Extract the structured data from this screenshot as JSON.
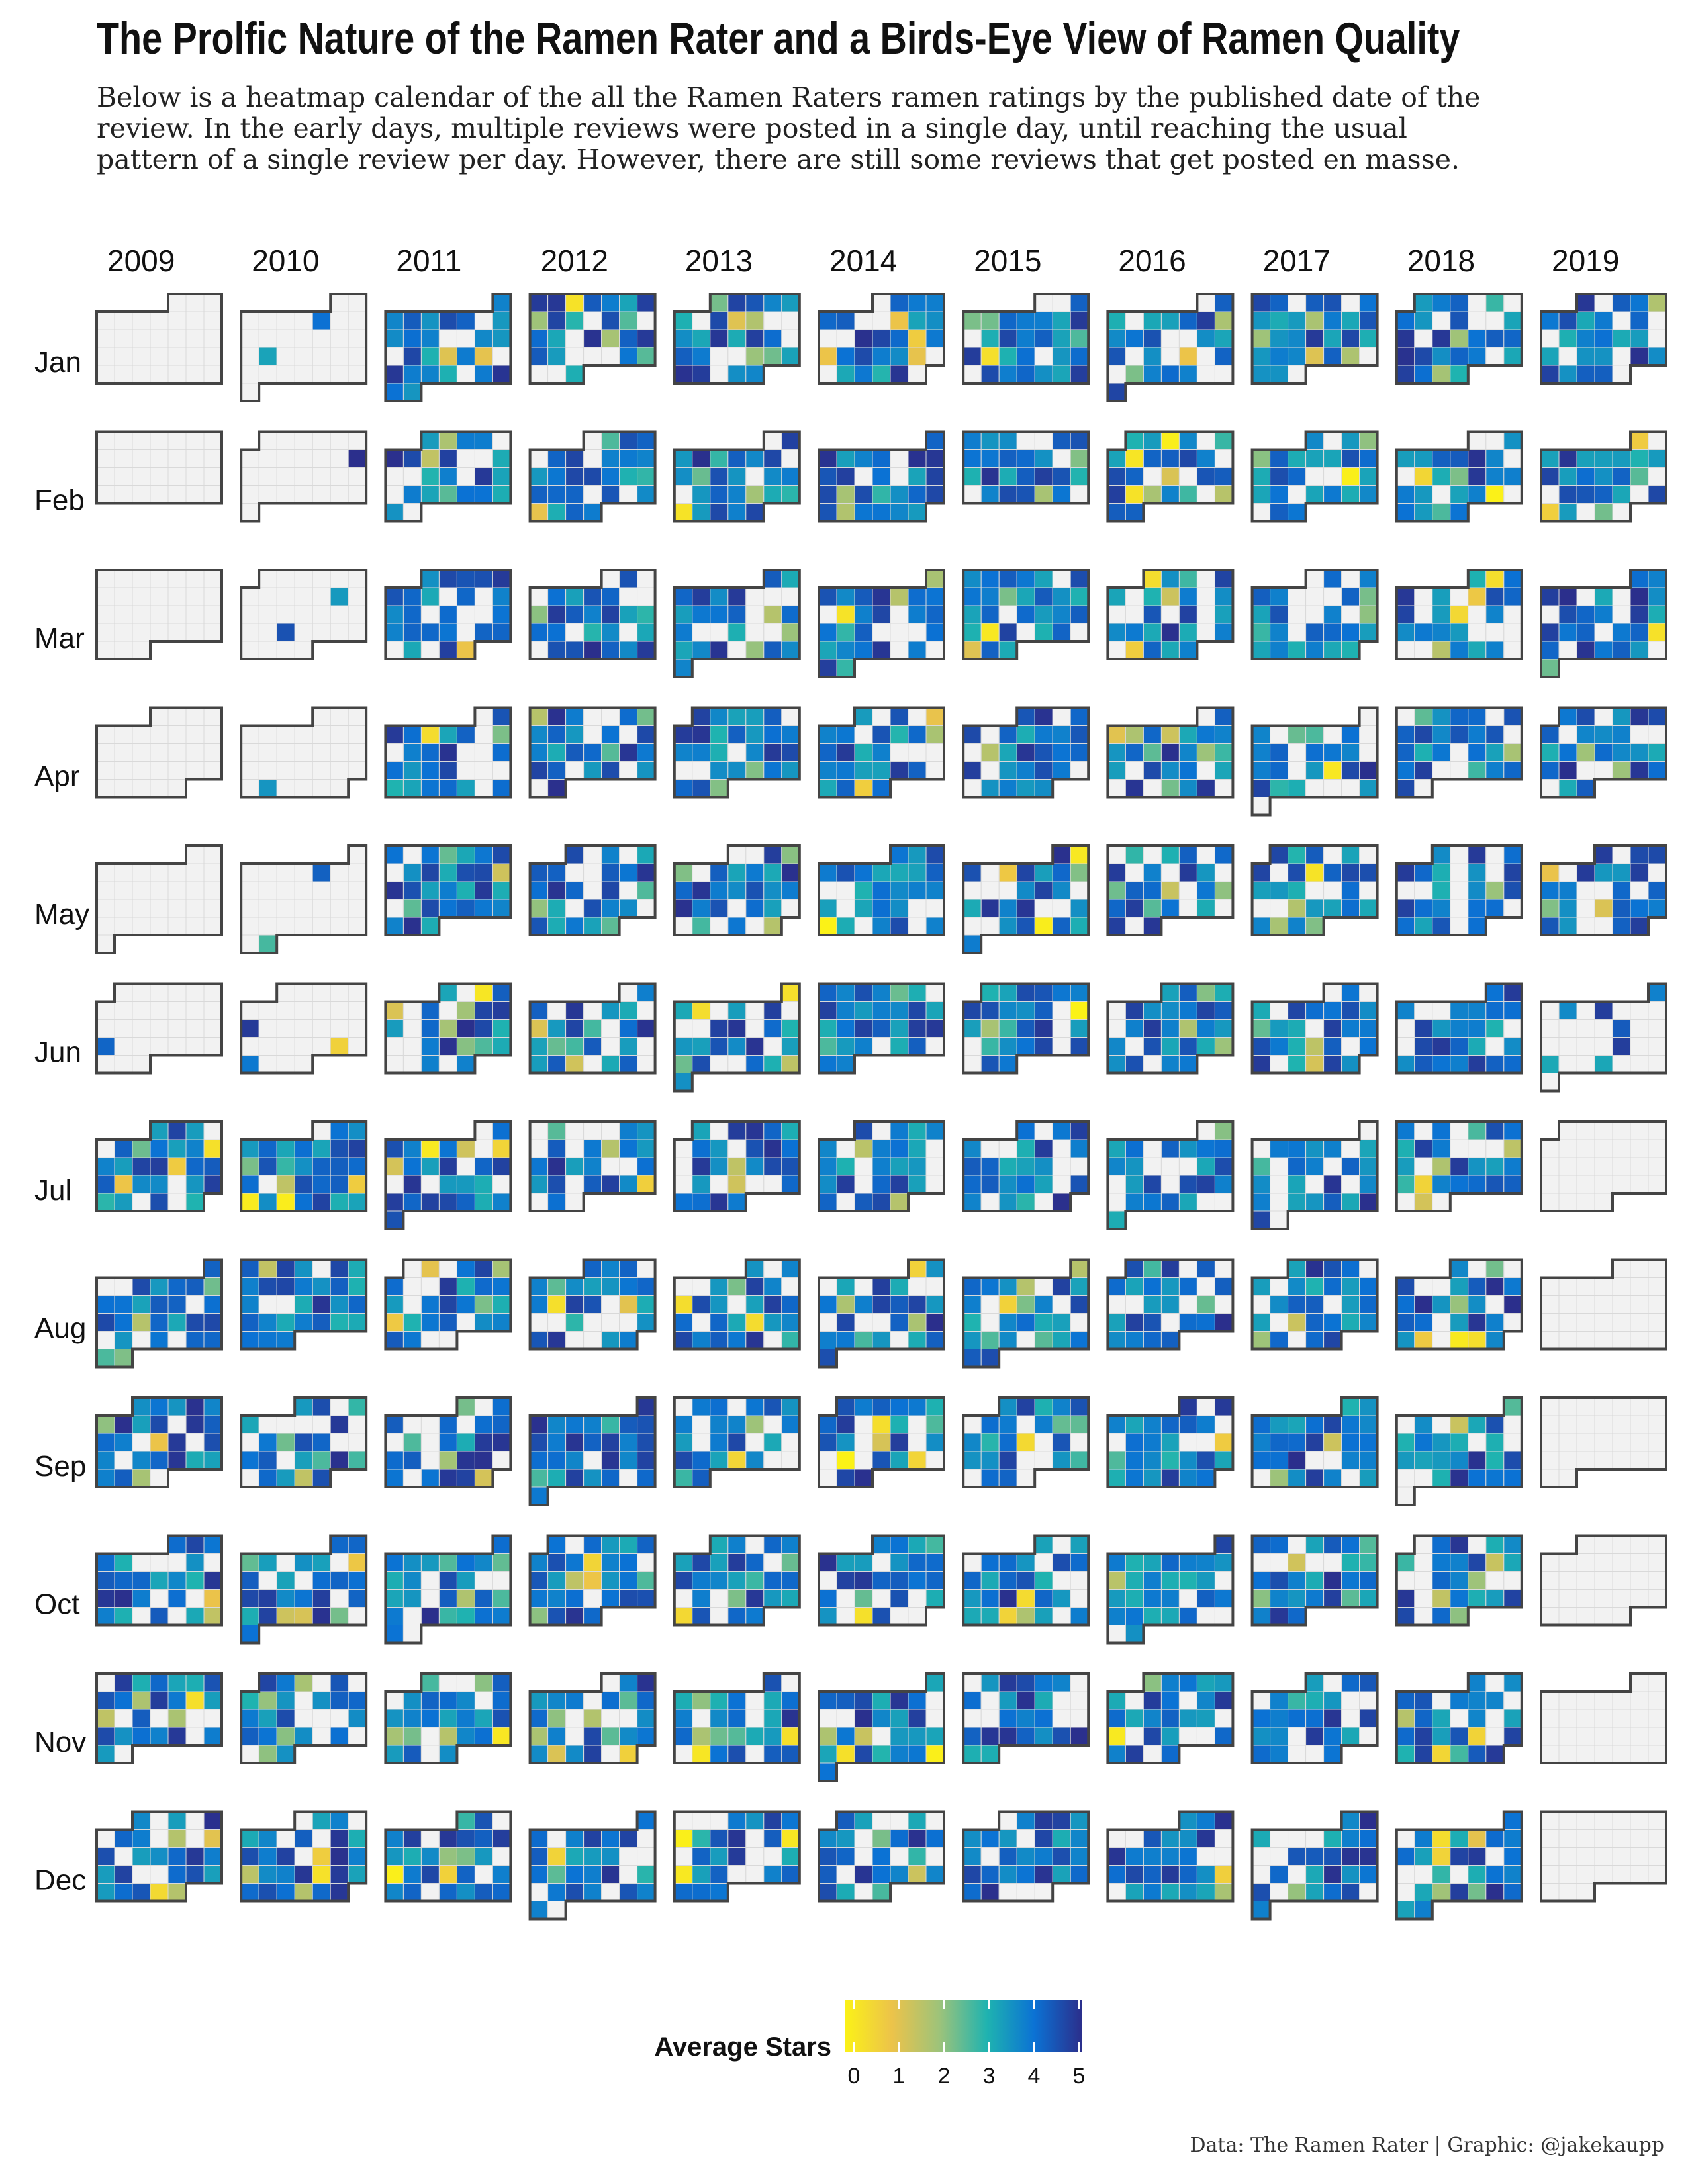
{
  "title": "The Prolfic Nature of the Ramen Rater and a Birds-Eye View of Ramen Quality",
  "subtitle_lines": [
    "Below is a heatmap calendar of the all the Ramen Raters ramen ratings by the published date of the",
    "review. In the early days, multiple reviews were posted in a single day, until reaching the usual",
    "pattern of a single review per day. However, there are still some reviews that get posted en masse."
  ],
  "caption": "Data: The Ramen Rater | Graphic: @jakekaupp",
  "chart_data": {
    "type": "heatmap",
    "description_of_layout": "calendar heatmap: columns are years, rows are months; each cell is one day placed in a weekday x week-of-month grid",
    "years": [
      "2009",
      "2010",
      "2011",
      "2012",
      "2013",
      "2014",
      "2015",
      "2016",
      "2017",
      "2018",
      "2019"
    ],
    "months": [
      "Jan",
      "Feb",
      "Mar",
      "Apr",
      "May",
      "Jun",
      "Jul",
      "Aug",
      "Sep",
      "Oct",
      "Nov",
      "Dec"
    ],
    "value_name": "Average Stars",
    "value_range": [
      0,
      5
    ],
    "no_review_color": "#f2f2f2",
    "grid_line_color": "#d9d9d9",
    "outline_color": "#444444",
    "legend": {
      "title": "Average Stars",
      "ticks": [
        "0",
        "1",
        "2",
        "3",
        "4",
        "5"
      ],
      "colors": [
        "#fbf217",
        "#ecc34a",
        "#9dc37a",
        "#1fb3b0",
        "#0b72d4",
        "#2b2f8c"
      ],
      "position": "bottom-center"
    },
    "data_range": {
      "first_review_month": "2009-06",
      "last_review_month": "2019-06",
      "reviews_per_day_note": "most days 3–5 stars; empty days shown in light grey"
    }
  }
}
